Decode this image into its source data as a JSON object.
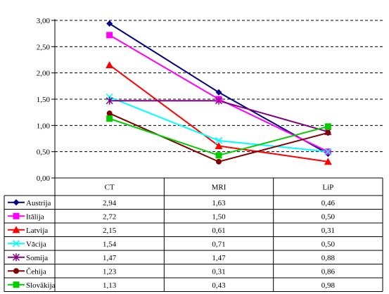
{
  "chart_data": {
    "type": "line",
    "categories": [
      "CT",
      "MRI",
      "LiP"
    ],
    "y_ticks": [
      "0,00",
      "0,50",
      "1,00",
      "1,50",
      "2,00",
      "2,50",
      "3,00"
    ],
    "ylim": [
      0,
      3
    ],
    "grid": true,
    "legend": "data-table",
    "series": [
      {
        "name": "Austrija",
        "values": [
          2.94,
          1.63,
          0.46
        ],
        "labels": [
          "2,94",
          "1,63",
          "0,46"
        ],
        "color": "#000080",
        "marker": "diamond"
      },
      {
        "name": "Itālija",
        "values": [
          2.72,
          1.5,
          0.5
        ],
        "labels": [
          "2,72",
          "1,50",
          "0,50"
        ],
        "color": "#ff00ff",
        "marker": "square"
      },
      {
        "name": "Latvija",
        "values": [
          2.15,
          0.61,
          0.31
        ],
        "labels": [
          "2,15",
          "0,61",
          "0,31"
        ],
        "color": "#ff0000",
        "marker": "triangle"
      },
      {
        "name": "Vācija",
        "values": [
          1.54,
          0.71,
          0.5
        ],
        "labels": [
          "1,54",
          "0,71",
          "0,50"
        ],
        "color": "#00ffff",
        "marker": "x"
      },
      {
        "name": "Somija",
        "values": [
          1.47,
          1.47,
          0.88
        ],
        "labels": [
          "1,47",
          "1,47",
          "0,88"
        ],
        "color": "#800080",
        "marker": "star"
      },
      {
        "name": "Čehija",
        "values": [
          1.23,
          0.31,
          0.86
        ],
        "labels": [
          "1,23",
          "0,31",
          "0,86"
        ],
        "color": "#800000",
        "marker": "circle"
      },
      {
        "name": "Slovākija",
        "values": [
          1.13,
          0.43,
          0.98
        ],
        "labels": [
          "1,13",
          "0,43",
          "0,98"
        ],
        "color": "#00cc00",
        "marker": "square"
      }
    ]
  }
}
